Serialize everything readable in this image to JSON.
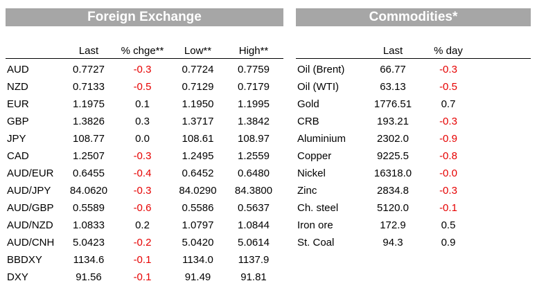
{
  "fx": {
    "title": "Foreign Exchange",
    "headers": [
      "",
      "Last",
      "% chge**",
      "Low**",
      "High**"
    ],
    "rows": [
      [
        "AUD",
        "0.7727",
        "-0.3",
        "0.7724",
        "0.7759"
      ],
      [
        "NZD",
        "0.7133",
        "-0.5",
        "0.7129",
        "0.7179"
      ],
      [
        "EUR",
        "1.1975",
        "0.1",
        "1.1950",
        "1.1995"
      ],
      [
        "GBP",
        "1.3826",
        "0.3",
        "1.3717",
        "1.3842"
      ],
      [
        "JPY",
        "108.77",
        "0.0",
        "108.61",
        "108.97"
      ],
      [
        "CAD",
        "1.2507",
        "-0.3",
        "1.2495",
        "1.2559"
      ],
      [
        "AUD/EUR",
        "0.6455",
        "-0.4",
        "0.6452",
        "0.6480"
      ],
      [
        "AUD/JPY",
        "84.0620",
        "-0.3",
        "84.0290",
        "84.3800"
      ],
      [
        "AUD/GBP",
        "0.5589",
        "-0.6",
        "0.5586",
        "0.5637"
      ],
      [
        "AUD/NZD",
        "1.0833",
        "0.2",
        "1.0797",
        "1.0844"
      ],
      [
        "AUD/CNH",
        "5.0423",
        "-0.2",
        "5.0420",
        "5.0614"
      ],
      [
        "BBDXY",
        "1134.6",
        "-0.1",
        "1134.0",
        "1137.9"
      ],
      [
        "DXY",
        "91.56",
        "-0.1",
        "91.49",
        "91.81"
      ]
    ]
  },
  "commodities": {
    "title": "Commodities*",
    "headers": [
      "",
      "Last",
      "% day"
    ],
    "rows": [
      [
        "Oil (Brent)",
        "66.77",
        "-0.3"
      ],
      [
        "Oil (WTI)",
        "63.13",
        "-0.5"
      ],
      [
        "Gold",
        "1776.51",
        "0.7"
      ],
      [
        "CRB",
        "193.21",
        "-0.3"
      ],
      [
        "Aluminium",
        "2302.0",
        "-0.9"
      ],
      [
        "Copper",
        "9225.5",
        "-0.8"
      ],
      [
        "Nickel",
        "16318.0",
        "-0.0"
      ],
      [
        "Zinc",
        "2834.8",
        "-0.3"
      ],
      [
        "Ch. steel",
        "5120.0",
        "-0.1"
      ],
      [
        "Iron ore",
        "172.9",
        "0.5"
      ],
      [
        "St. Coal",
        "94.3",
        "0.9"
      ]
    ]
  },
  "colors": {
    "header_bg": "#a6a6a6",
    "negative": "#e60000"
  }
}
